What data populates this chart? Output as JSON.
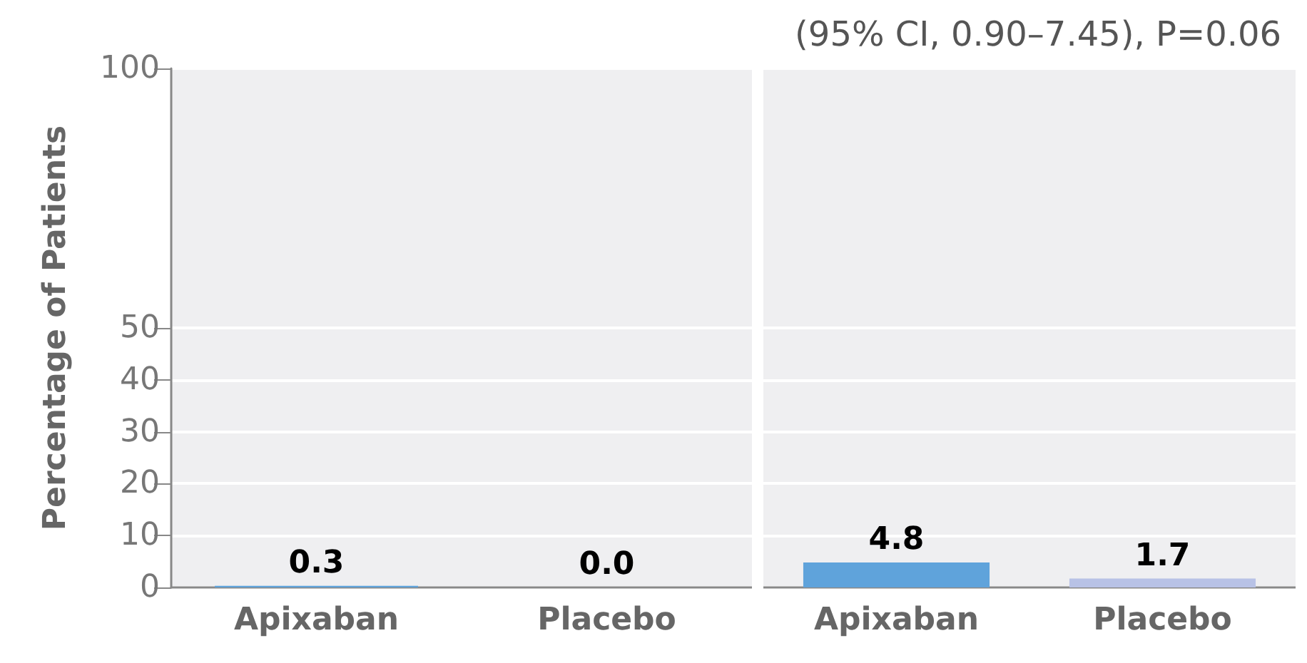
{
  "chart_data": [
    {
      "type": "bar",
      "ylabel": "Percentage of Patients",
      "categories": [
        "Apixaban",
        "Placebo"
      ],
      "values": [
        0.3,
        0.0
      ],
      "value_labels": [
        "0.3",
        "0.0"
      ],
      "colors": [
        "#5fa3db",
        "#b8c2e6"
      ],
      "ylim": [
        0,
        100
      ],
      "yticks": [
        0,
        10,
        20,
        30,
        40,
        50,
        100
      ],
      "grid": "y"
    },
    {
      "type": "bar",
      "annotations": [
        "(95% CI, 0.90–7.45), P=0.06"
      ],
      "categories": [
        "Apixaban",
        "Placebo"
      ],
      "values": [
        4.8,
        1.7
      ],
      "value_labels": [
        "4.8",
        "1.7"
      ],
      "colors": [
        "#5fa3db",
        "#b8c2e6"
      ],
      "ylim": [
        0,
        100
      ],
      "yticks": [
        0,
        10,
        20,
        30,
        40,
        50,
        100
      ],
      "grid": "y",
      "tick_labels": "x"
    }
  ]
}
